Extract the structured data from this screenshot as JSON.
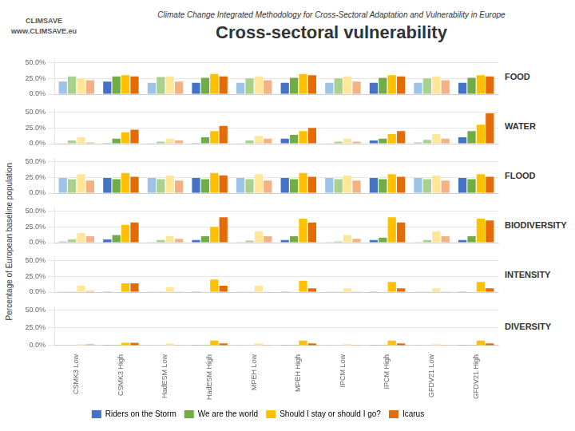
{
  "title": "Cross-sectoral vulnerability",
  "subtitle": "Climate Change Integrated Methodology for Cross-Sectoral Adaptation and Vulnerability in Europe",
  "ylabel": "Percentage of European baseline population",
  "annotations": [
    "CLIMSAVE",
    "www.CLIMSAVE.eu"
  ],
  "chart_data": [
    {
      "type": "bar",
      "title": "FOOD",
      "categories": [
        "CSMK3 Low",
        "CSMK3 High",
        "HadESM Low",
        "HadESM High",
        "MPEH Low",
        "MPEH High",
        "IPCM Low",
        "IPCM High",
        "GFDV21 Low",
        "GFDV21 High"
      ],
      "series": [
        {
          "name": "Riders on the Storm",
          "color": "#4472C4",
          "colors": [
            "#9DC3E6",
            "#4472C4",
            "#9DC3E6",
            "#4472C4",
            "#9DC3E6",
            "#4472C4",
            "#9DC3E6",
            "#4472C4",
            "#9DC3E6",
            "#4472C4"
          ],
          "values": [
            20,
            20,
            18,
            18,
            18,
            18,
            18,
            18,
            18,
            18
          ]
        },
        {
          "name": "We are the world",
          "color": "#70AD47",
          "colors": [
            "#A9D18E",
            "#70AD47",
            "#A9D18E",
            "#70AD47",
            "#A9D18E",
            "#70AD47",
            "#A9D18E",
            "#70AD47",
            "#A9D18E",
            "#70AD47"
          ],
          "values": [
            28,
            28,
            27,
            26,
            25,
            26,
            25,
            26,
            25,
            26
          ]
        },
        {
          "name": "Should I stay or should I go?",
          "color": "#FFC000",
          "colors": [
            "#FFE699",
            "#FFC000",
            "#FFE699",
            "#FFC000",
            "#FFE699",
            "#FFC000",
            "#FFE699",
            "#FFC000",
            "#FFE699",
            "#FFC000"
          ],
          "values": [
            25,
            30,
            28,
            32,
            28,
            32,
            28,
            30,
            28,
            30
          ]
        },
        {
          "name": "Icarus",
          "color": "#E36C09",
          "colors": [
            "#F4B183",
            "#E36C09",
            "#F4B183",
            "#E36C09",
            "#F4B183",
            "#E36C09",
            "#F4B183",
            "#E36C09",
            "#F4B183",
            "#E36C09"
          ],
          "values": [
            22,
            28,
            20,
            28,
            22,
            30,
            20,
            28,
            22,
            28
          ]
        }
      ],
      "ylim": [
        0,
        55
      ],
      "yticks": [
        {
          "value": 0.0,
          "label": "0.0%"
        },
        {
          "value": 25.0,
          "label": "25.0%"
        },
        {
          "value": 50.0,
          "label": "50.0%"
        }
      ],
      "grid": true,
      "tick_labels": "y"
    },
    {
      "type": "bar",
      "title": "WATER",
      "categories": [
        "CSMK3 Low",
        "CSMK3 High",
        "HadESM Low",
        "HadESM High",
        "MPEH Low",
        "MPEH High",
        "IPCM Low",
        "IPCM High",
        "GFDV21 Low",
        "GFDV21 High"
      ],
      "series": [
        {
          "name": "Riders on the Storm",
          "color": "#4472C4",
          "colors": [
            "#9DC3E6",
            "#4472C4",
            "#9DC3E6",
            "#4472C4",
            "#9DC3E6",
            "#4472C4",
            "#9DC3E6",
            "#4472C4",
            "#9DC3E6",
            "#4472C4"
          ],
          "values": [
            1,
            1,
            1,
            1,
            1,
            8,
            1,
            5,
            2,
            10
          ]
        },
        {
          "name": "We are the world",
          "color": "#70AD47",
          "colors": [
            "#A9D18E",
            "#70AD47",
            "#A9D18E",
            "#70AD47",
            "#A9D18E",
            "#70AD47",
            "#A9D18E",
            "#70AD47",
            "#A9D18E",
            "#70AD47"
          ],
          "values": [
            5,
            8,
            3,
            10,
            5,
            14,
            3,
            8,
            6,
            20
          ]
        },
        {
          "name": "Should I stay or should I go?",
          "color": "#FFC000",
          "colors": [
            "#FFE699",
            "#FFC000",
            "#FFE699",
            "#FFC000",
            "#FFE699",
            "#FFC000",
            "#FFE699",
            "#FFC000",
            "#FFE699",
            "#FFC000"
          ],
          "values": [
            10,
            18,
            8,
            20,
            12,
            20,
            8,
            15,
            15,
            30
          ]
        },
        {
          "name": "Icarus",
          "color": "#E36C09",
          "colors": [
            "#F4B183",
            "#E36C09",
            "#F4B183",
            "#E36C09",
            "#F4B183",
            "#E36C09",
            "#F4B183",
            "#E36C09",
            "#F4B183",
            "#E36C09"
          ],
          "values": [
            2,
            22,
            5,
            28,
            8,
            25,
            3,
            20,
            8,
            48
          ]
        }
      ],
      "ylim": [
        0,
        55
      ],
      "yticks": [
        {
          "value": 0.0,
          "label": "0.0%"
        },
        {
          "value": 25.0,
          "label": "25.0%"
        },
        {
          "value": 50.0,
          "label": "50.0%"
        }
      ],
      "grid": true,
      "tick_labels": "y"
    },
    {
      "type": "bar",
      "title": "FLOOD",
      "categories": [
        "CSMK3 Low",
        "CSMK3 High",
        "HadESM Low",
        "HadESM High",
        "MPEH Low",
        "MPEH High",
        "IPCM Low",
        "IPCM High",
        "GFDV21 Low",
        "GFDV21 High"
      ],
      "series": [
        {
          "name": "Riders on the Storm",
          "color": "#4472C4",
          "colors": [
            "#9DC3E6",
            "#4472C4",
            "#9DC3E6",
            "#4472C4",
            "#9DC3E6",
            "#4472C4",
            "#9DC3E6",
            "#4472C4",
            "#9DC3E6",
            "#4472C4"
          ],
          "values": [
            24,
            24,
            24,
            24,
            24,
            24,
            24,
            24,
            24,
            24
          ]
        },
        {
          "name": "We are the world",
          "color": "#70AD47",
          "colors": [
            "#A9D18E",
            "#70AD47",
            "#A9D18E",
            "#70AD47",
            "#A9D18E",
            "#70AD47",
            "#A9D18E",
            "#70AD47",
            "#A9D18E",
            "#70AD47"
          ],
          "values": [
            22,
            22,
            22,
            22,
            22,
            22,
            22,
            22,
            22,
            22
          ]
        },
        {
          "name": "Should I stay or should I go?",
          "color": "#FFC000",
          "colors": [
            "#FFE699",
            "#FFC000",
            "#FFE699",
            "#FFC000",
            "#FFE699",
            "#FFC000",
            "#FFE699",
            "#FFC000",
            "#FFE699",
            "#FFC000"
          ],
          "values": [
            30,
            32,
            28,
            32,
            30,
            32,
            28,
            30,
            28,
            30
          ]
        },
        {
          "name": "Icarus",
          "color": "#E36C09",
          "colors": [
            "#F4B183",
            "#E36C09",
            "#F4B183",
            "#E36C09",
            "#F4B183",
            "#E36C09",
            "#F4B183",
            "#E36C09",
            "#F4B183",
            "#E36C09"
          ],
          "values": [
            20,
            26,
            20,
            28,
            20,
            26,
            20,
            26,
            20,
            26
          ]
        }
      ],
      "ylim": [
        0,
        55
      ],
      "yticks": [
        {
          "value": 0.0,
          "label": "0.0%"
        },
        {
          "value": 25.0,
          "label": "25.0%"
        },
        {
          "value": 50.0,
          "label": "50.0%"
        }
      ],
      "grid": true,
      "tick_labels": "y"
    },
    {
      "type": "bar",
      "title": "BIODIVERSITY",
      "categories": [
        "CSMK3 Low",
        "CSMK3 High",
        "HadESM Low",
        "HadESM High",
        "MPEH Low",
        "MPEH High",
        "IPCM Low",
        "IPCM High",
        "GFDV21 Low",
        "GFDV21 High"
      ],
      "series": [
        {
          "name": "Riders on the Storm",
          "color": "#4472C4",
          "colors": [
            "#9DC3E6",
            "#4472C4",
            "#9DC3E6",
            "#4472C4",
            "#9DC3E6",
            "#4472C4",
            "#9DC3E6",
            "#4472C4",
            "#9DC3E6",
            "#4472C4"
          ],
          "values": [
            2,
            5,
            1,
            4,
            1,
            4,
            1,
            4,
            1,
            4
          ]
        },
        {
          "name": "We are the world",
          "color": "#70AD47",
          "colors": [
            "#A9D18E",
            "#70AD47",
            "#A9D18E",
            "#70AD47",
            "#A9D18E",
            "#70AD47",
            "#A9D18E",
            "#70AD47",
            "#A9D18E",
            "#70AD47"
          ],
          "values": [
            5,
            12,
            4,
            10,
            3,
            10,
            2,
            8,
            4,
            10
          ]
        },
        {
          "name": "Should I stay or should I go?",
          "color": "#FFC000",
          "colors": [
            "#FFE699",
            "#FFC000",
            "#FFE699",
            "#FFC000",
            "#FFE699",
            "#FFC000",
            "#FFE699",
            "#FFC000",
            "#FFE699",
            "#FFC000"
          ],
          "values": [
            15,
            28,
            10,
            25,
            18,
            38,
            12,
            40,
            18,
            38
          ]
        },
        {
          "name": "Icarus",
          "color": "#E36C09",
          "colors": [
            "#F4B183",
            "#E36C09",
            "#F4B183",
            "#E36C09",
            "#F4B183",
            "#E36C09",
            "#F4B183",
            "#E36C09",
            "#F4B183",
            "#E36C09"
          ],
          "values": [
            10,
            32,
            6,
            40,
            10,
            32,
            6,
            32,
            10,
            35
          ]
        }
      ],
      "ylim": [
        0,
        55
      ],
      "yticks": [
        {
          "value": 0.0,
          "label": "0.0%"
        },
        {
          "value": 25.0,
          "label": "25.0%"
        },
        {
          "value": 50.0,
          "label": "50.0%"
        }
      ],
      "grid": true,
      "tick_labels": "y"
    },
    {
      "type": "bar",
      "title": "INTENSITY",
      "categories": [
        "CSMK3 Low",
        "CSMK3 High",
        "HadESM Low",
        "HadESM High",
        "MPEH Low",
        "MPEH High",
        "IPCM Low",
        "IPCM High",
        "GFDV21 Low",
        "GFDV21 High"
      ],
      "series": [
        {
          "name": "Riders on the Storm",
          "color": "#4472C4",
          "colors": [
            "#9DC3E6",
            "#4472C4",
            "#9DC3E6",
            "#4472C4",
            "#9DC3E6",
            "#4472C4",
            "#9DC3E6",
            "#4472C4",
            "#9DC3E6",
            "#4472C4"
          ],
          "values": [
            0.2,
            0.3,
            0.2,
            0.3,
            0.2,
            0.3,
            0.2,
            0.3,
            0.2,
            0.3
          ]
        },
        {
          "name": "We are the world",
          "color": "#70AD47",
          "colors": [
            "#A9D18E",
            "#70AD47",
            "#A9D18E",
            "#70AD47",
            "#A9D18E",
            "#70AD47",
            "#A9D18E",
            "#70AD47",
            "#A9D18E",
            "#70AD47"
          ],
          "values": [
            0.3,
            0.5,
            0.3,
            0.5,
            0.3,
            0.5,
            0.3,
            0.5,
            0.3,
            0.5
          ]
        },
        {
          "name": "Should I stay or should I go?",
          "color": "#FFC000",
          "colors": [
            "#FFE699",
            "#FFC000",
            "#FFE699",
            "#FFC000",
            "#FFE699",
            "#FFC000",
            "#FFE699",
            "#FFC000",
            "#FFE699",
            "#FFC000"
          ],
          "values": [
            10,
            14,
            8,
            20,
            10,
            18,
            6,
            16,
            6,
            16
          ]
        },
        {
          "name": "Icarus",
          "color": "#E36C09",
          "colors": [
            "#F4B183",
            "#E36C09",
            "#F4B183",
            "#E36C09",
            "#F4B183",
            "#E36C09",
            "#F4B183",
            "#E36C09",
            "#F4B183",
            "#E36C09"
          ],
          "values": [
            2,
            14,
            1,
            10,
            1,
            6,
            1,
            6,
            1,
            6
          ]
        }
      ],
      "ylim": [
        0,
        55
      ],
      "yticks": [
        {
          "value": 0.0,
          "label": "0.0%"
        },
        {
          "value": 25.0,
          "label": "25.0%"
        },
        {
          "value": 50.0,
          "label": "50.0%"
        }
      ],
      "grid": true,
      "tick_labels": "y"
    },
    {
      "type": "bar",
      "title": "DIVERSITY",
      "categories": [
        "CSMK3 Low",
        "CSMK3 High",
        "HadESM Low",
        "HadESM High",
        "MPEH Low",
        "MPEH High",
        "IPCM Low",
        "IPCM High",
        "GFDV21 Low",
        "GFDV21 High"
      ],
      "series": [
        {
          "name": "Riders on the Storm",
          "color": "#4472C4",
          "colors": [
            "#9DC3E6",
            "#4472C4",
            "#9DC3E6",
            "#4472C4",
            "#9DC3E6",
            "#4472C4",
            "#9DC3E6",
            "#4472C4",
            "#9DC3E6",
            "#4472C4"
          ],
          "values": [
            0.2,
            0.3,
            0.2,
            0.3,
            0.2,
            0.3,
            0.2,
            0.3,
            0.2,
            0.3
          ]
        },
        {
          "name": "We are the world",
          "color": "#70AD47",
          "colors": [
            "#A9D18E",
            "#70AD47",
            "#A9D18E",
            "#70AD47",
            "#A9D18E",
            "#70AD47",
            "#A9D18E",
            "#70AD47",
            "#A9D18E",
            "#70AD47"
          ],
          "values": [
            0.5,
            0.8,
            0.5,
            0.8,
            0.5,
            0.8,
            0.5,
            0.8,
            0.5,
            0.8
          ]
        },
        {
          "name": "Should I stay or should I go?",
          "color": "#FFC000",
          "colors": [
            "#FFE699",
            "#FFC000",
            "#FFE699",
            "#FFC000",
            "#FFE699",
            "#FFC000",
            "#FFE699",
            "#FFC000",
            "#FFE699",
            "#FFC000"
          ],
          "values": [
            2,
            4,
            3,
            7,
            3,
            7,
            2,
            7,
            2,
            7
          ]
        },
        {
          "name": "Icarus",
          "color": "#E36C09",
          "colors": [
            "#F4B183",
            "#E36C09",
            "#F4B183",
            "#E36C09",
            "#F4B183",
            "#E36C09",
            "#F4B183",
            "#E36C09",
            "#F4B183",
            "#E36C09"
          ],
          "values": [
            2,
            4,
            1,
            3,
            1,
            3,
            1,
            3,
            1,
            3
          ]
        }
      ],
      "ylim": [
        0,
        55
      ],
      "yticks": [
        {
          "value": 0.0,
          "label": "0.0%"
        },
        {
          "value": 25.0,
          "label": "25.0%"
        },
        {
          "value": 50.0,
          "label": "50.0%"
        }
      ],
      "grid": true,
      "legend": "bottom"
    }
  ]
}
